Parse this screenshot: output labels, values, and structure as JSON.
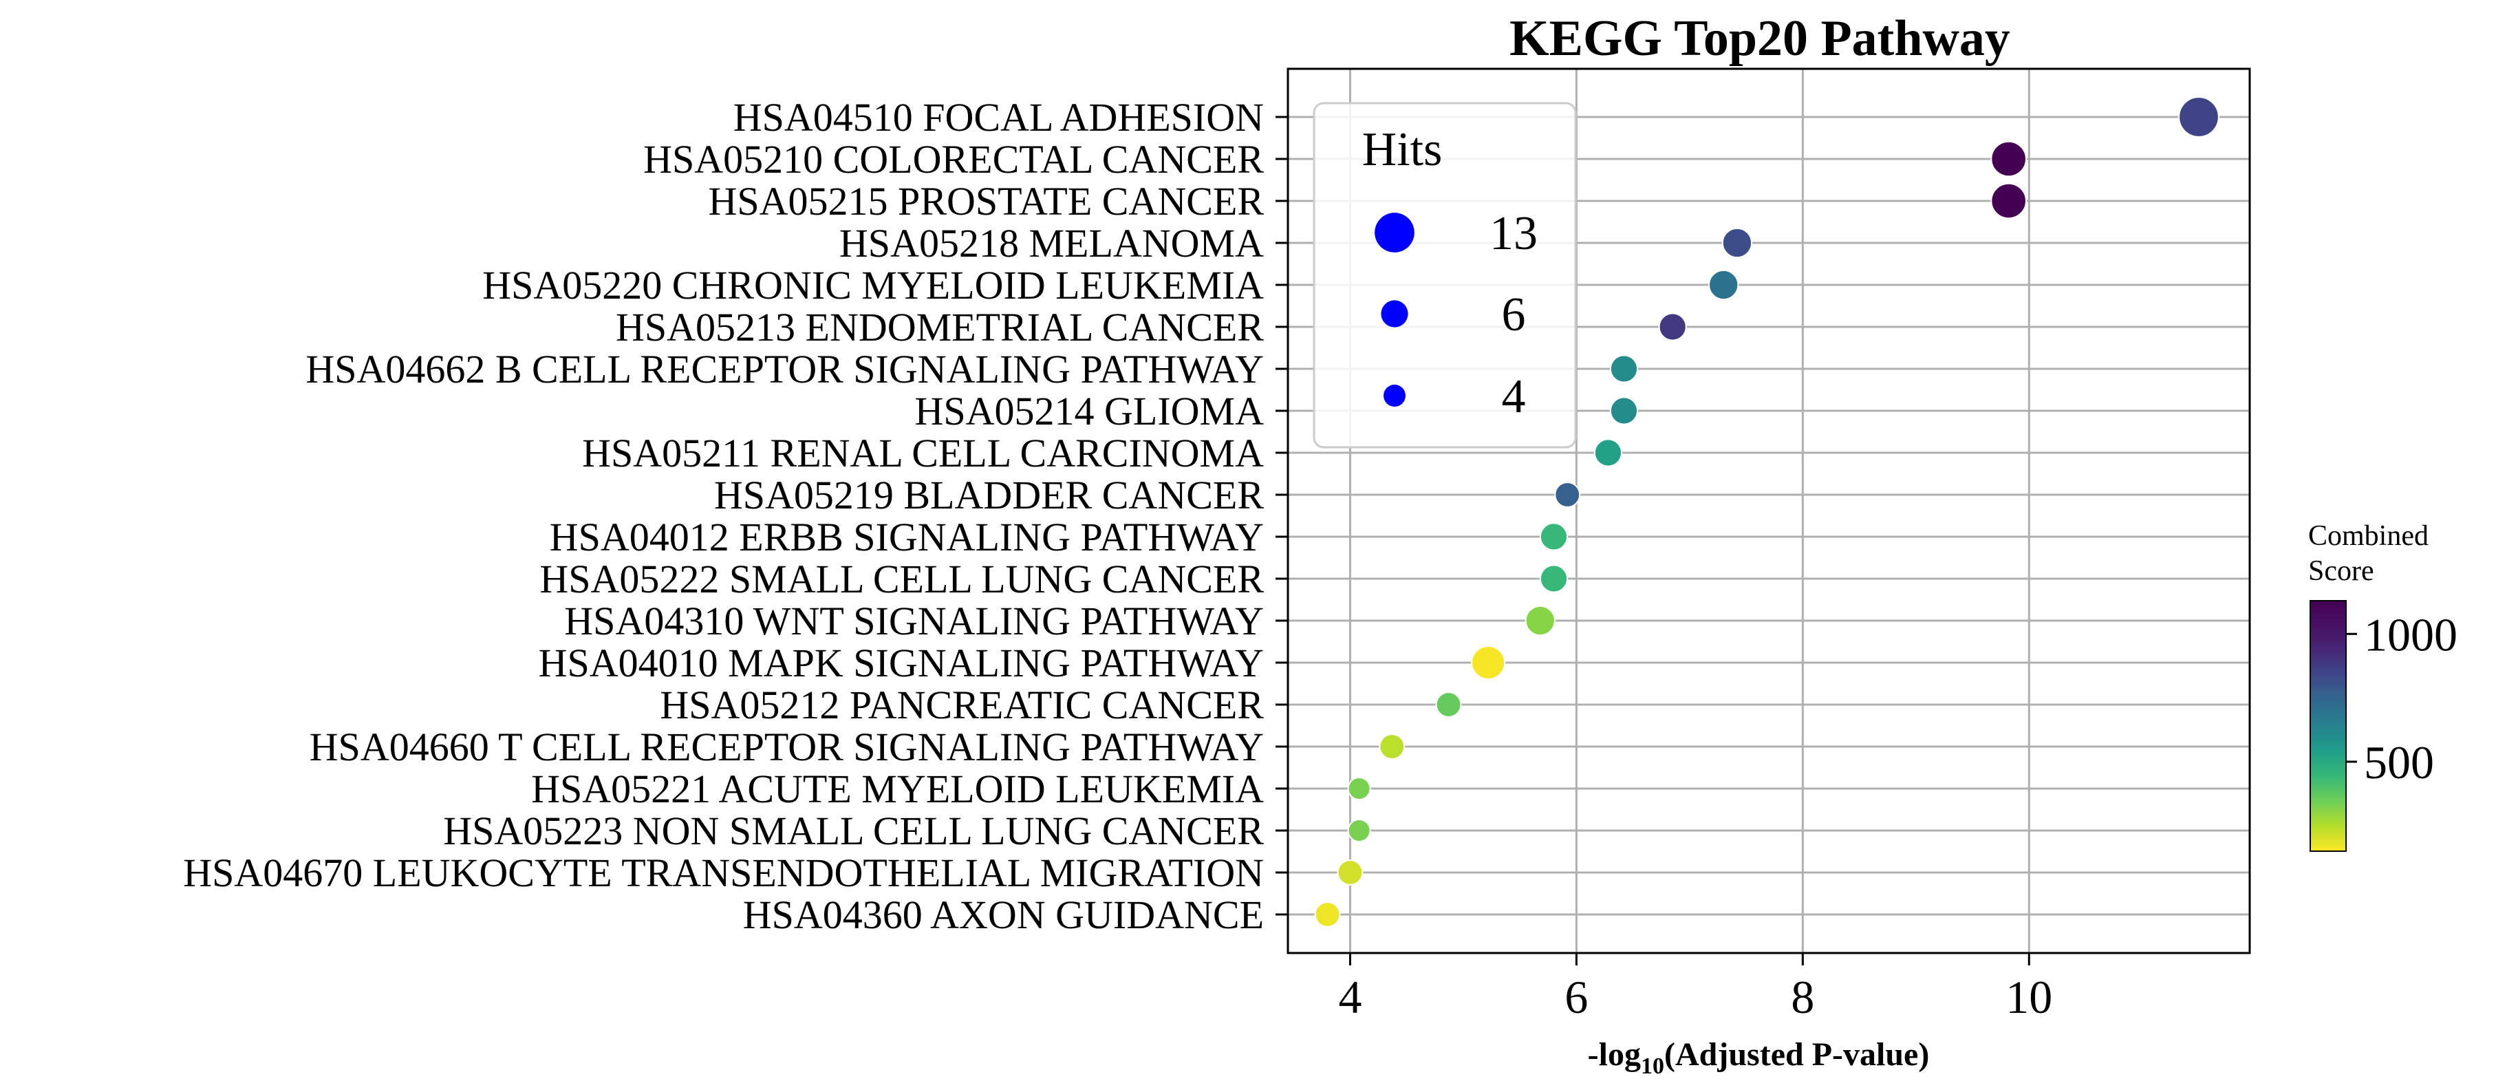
{
  "chart_data": {
    "type": "scatter",
    "title": "KEGG Top20 Pathway",
    "xlabel_main": "-log",
    "xlabel_sub": "10",
    "xlabel_rest": "(Adjusted P-value)",
    "xlim": [
      3.45,
      11.95
    ],
    "xticks": [
      4,
      6,
      8,
      10
    ],
    "grid": true,
    "colormap": "viridis",
    "color_range": [
      150,
      1130
    ],
    "colorbar": {
      "title_line1": "Combined",
      "title_line2": "Score",
      "ticks": [
        500,
        1000
      ]
    },
    "legend": {
      "title": "Hits",
      "placement": "upper-left",
      "marker_color": "#0000ff",
      "entries": [
        {
          "label": "13",
          "value": 13
        },
        {
          "label": "6",
          "value": 6
        },
        {
          "label": "4",
          "value": 4
        }
      ]
    },
    "points": [
      {
        "label": "HSA04510 FOCAL ADHESION",
        "x": 11.5,
        "hits": 13,
        "score": 850
      },
      {
        "label": "HSA05210 COLORECTAL CANCER",
        "x": 9.82,
        "hits": 10,
        "score": 1130
      },
      {
        "label": "HSA05215 PROSTATE CANCER",
        "x": 9.82,
        "hits": 10,
        "score": 1130
      },
      {
        "label": "HSA05218 MELANOMA",
        "x": 7.42,
        "hits": 7,
        "score": 820
      },
      {
        "label": "HSA05220 CHRONIC MYELOID LEUKEMIA",
        "x": 7.3,
        "hits": 7,
        "score": 700
      },
      {
        "label": "HSA05213 ENDOMETRIAL CANCER",
        "x": 6.85,
        "hits": 6,
        "score": 880
      },
      {
        "label": "HSA04662 B CELL RECEPTOR SIGNALING PATHWAY",
        "x": 6.42,
        "hits": 6,
        "score": 600
      },
      {
        "label": "HSA05214 GLIOMA",
        "x": 6.42,
        "hits": 6,
        "score": 600
      },
      {
        "label": "HSA05211 RENAL CELL CARCINOMA",
        "x": 6.28,
        "hits": 6,
        "score": 530
      },
      {
        "label": "HSA05219 BLADDER CANCER",
        "x": 5.92,
        "hits": 5,
        "score": 760
      },
      {
        "label": "HSA04012 ERBB SIGNALING PATHWAY",
        "x": 5.8,
        "hits": 6,
        "score": 440
      },
      {
        "label": "HSA05222 SMALL CELL LUNG CANCER",
        "x": 5.8,
        "hits": 6,
        "score": 440
      },
      {
        "label": "HSA04310 WNT SIGNALING PATHWAY",
        "x": 5.68,
        "hits": 7,
        "score": 310
      },
      {
        "label": "HSA04010 MAPK SIGNALING PATHWAY",
        "x": 5.22,
        "hits": 9,
        "score": 160
      },
      {
        "label": "HSA05212 PANCREATIC CANCER",
        "x": 4.87,
        "hits": 5,
        "score": 360
      },
      {
        "label": "HSA04660 T CELL RECEPTOR SIGNALING PATHWAY",
        "x": 4.37,
        "hits": 5,
        "score": 240
      },
      {
        "label": "HSA05221 ACUTE MYELOID LEUKEMIA",
        "x": 4.08,
        "hits": 4,
        "score": 330
      },
      {
        "label": "HSA05223 NON SMALL CELL LUNG CANCER",
        "x": 4.08,
        "hits": 4,
        "score": 330
      },
      {
        "label": "HSA04670 LEUKOCYTE TRANSENDOTHELIAL MIGRATION",
        "x": 4.0,
        "hits": 5,
        "score": 210
      },
      {
        "label": "HSA04360 AXON GUIDANCE",
        "x": 3.8,
        "hits": 5,
        "score": 170
      }
    ]
  }
}
